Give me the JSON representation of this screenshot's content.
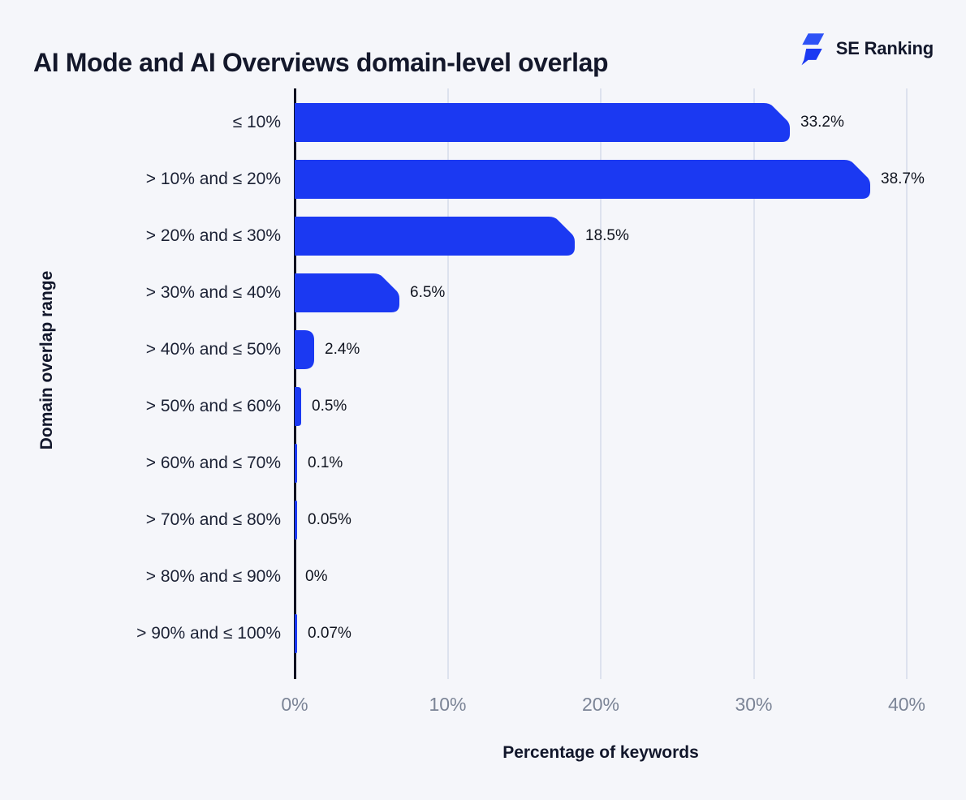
{
  "header": {
    "title": "AI Mode and AI Overviews domain-level overlap",
    "brand": "SE Ranking"
  },
  "chart_data": {
    "type": "bar",
    "orientation": "horizontal",
    "title": "AI Mode and AI Overviews domain-level overlap",
    "xlabel": "Percentage of keywords",
    "ylabel": "Domain overlap range",
    "categories": [
      "≤ 10%",
      "> 10% and ≤ 20%",
      "> 20% and ≤ 30%",
      "> 30% and ≤ 40%",
      "> 40% and ≤ 50%",
      "> 50% and ≤ 60%",
      "> 60% and ≤ 70%",
      "> 70% and ≤ 80%",
      "> 80% and ≤ 90%",
      "> 90% and ≤ 100%"
    ],
    "values": [
      33.2,
      38.7,
      18.5,
      6.5,
      2.4,
      0.5,
      0.1,
      0.05,
      0,
      0.07
    ],
    "value_labels": [
      "33.2%",
      "38.7%",
      "18.5%",
      "6.5%",
      "2.4%",
      "0.5%",
      "0.1%",
      "0.05%",
      "0%",
      "0.07%"
    ],
    "x_ticks": [
      {
        "value": 0,
        "label": "0%"
      },
      {
        "value": 10,
        "label": "10%"
      },
      {
        "value": 20,
        "label": "20%"
      },
      {
        "value": 30,
        "label": "30%"
      },
      {
        "value": 40,
        "label": "40%"
      }
    ],
    "xlim": [
      0,
      43
    ],
    "grid": "vertical",
    "legend": "none",
    "colors": {
      "bar": "#1b39f2",
      "background": "#f5f6fa",
      "gridline": "#dde2ee",
      "axis_line": "#0d1120",
      "tick_label": "#7b8496",
      "text": "#14182b"
    }
  }
}
